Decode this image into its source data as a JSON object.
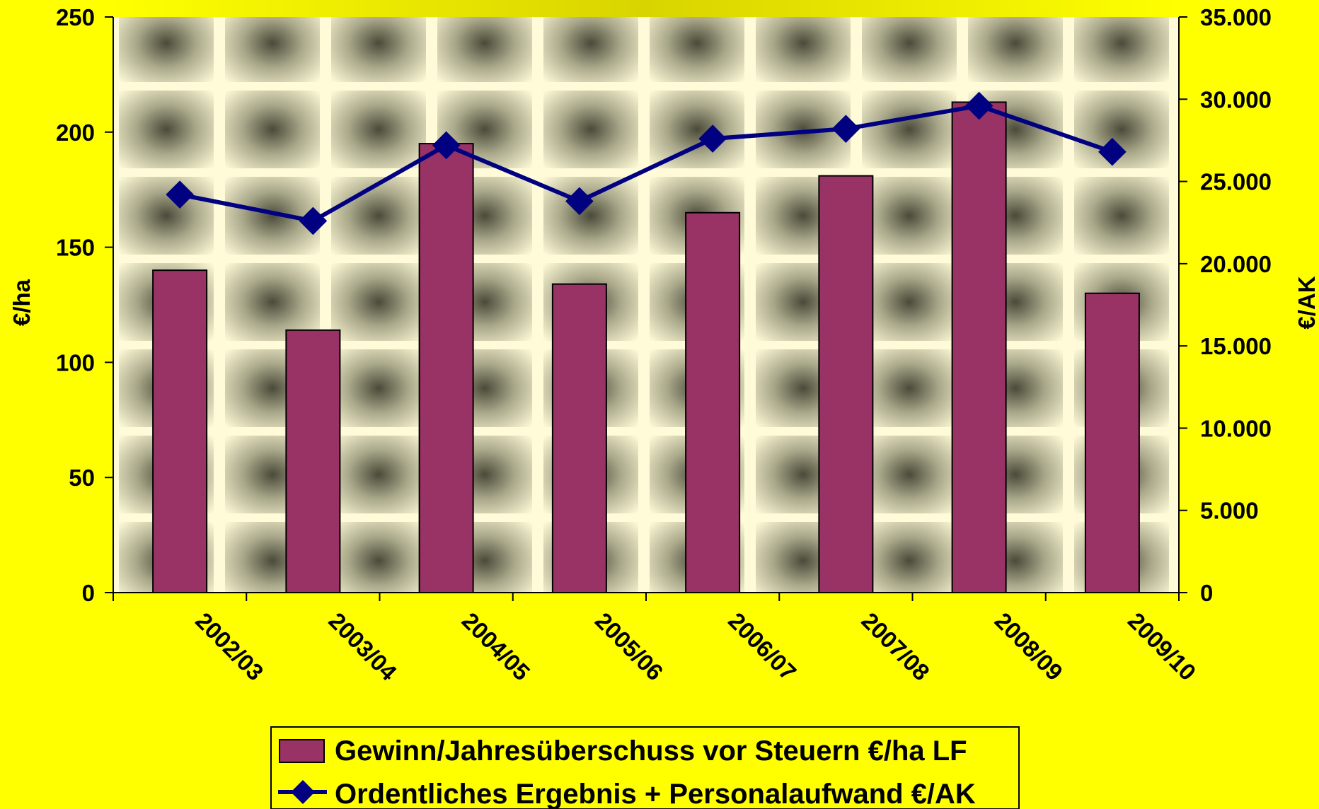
{
  "colors": {
    "background": "#ffff00",
    "bar": "#993366",
    "line": "#000080",
    "axis": "#000000"
  },
  "chart_data": {
    "type": "bar",
    "categories": [
      "2002/03",
      "2003/04",
      "2004/05",
      "2005/06",
      "2006/07",
      "2007/08",
      "2008/09",
      "2009/10"
    ],
    "series": [
      {
        "name": "Gewinn/Jahresüberschuss vor Steuern €/ha LF",
        "type": "bar",
        "axis": "left",
        "values": [
          140,
          114,
          195,
          134,
          165,
          181,
          213,
          130
        ]
      },
      {
        "name": "Ordentliches Ergebnis + Personalaufwand €/AK",
        "type": "line",
        "marker": "diamond",
        "axis": "right",
        "values": [
          24200,
          22600,
          27200,
          23800,
          27600,
          28200,
          29600,
          26800
        ]
      }
    ],
    "ylabel": "€/ha",
    "y2label": "€/AK",
    "ylim": [
      0,
      250
    ],
    "y2lim": [
      0,
      35000
    ],
    "yticks": [
      "0",
      "50",
      "100",
      "150",
      "200",
      "250"
    ],
    "y2ticks": [
      "0",
      "5.000",
      "10.000",
      "15.000",
      "20.000",
      "25.000",
      "30.000",
      "35.000"
    ],
    "legend_position": "bottom",
    "plot_background": "patterned"
  }
}
